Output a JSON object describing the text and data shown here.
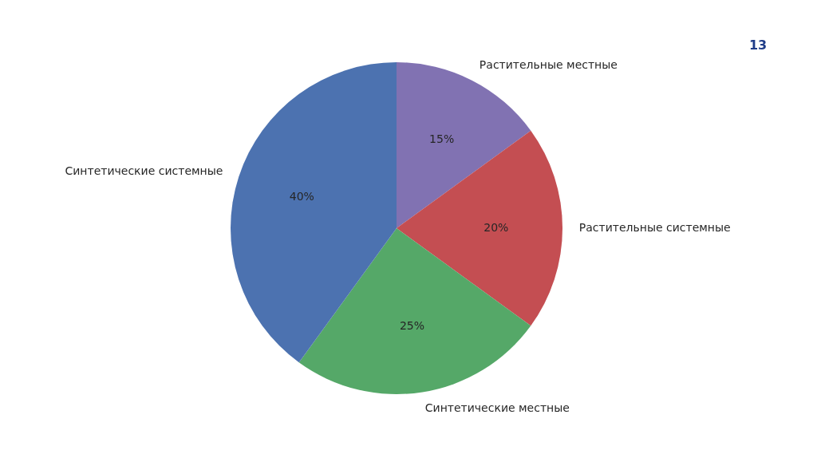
{
  "chart_data": {
    "type": "pie",
    "categories": [
      "Растительные местные",
      "Растительные системные",
      "Синтетические местные",
      "Синтетические системные"
    ],
    "values": [
      15,
      20,
      25,
      40
    ],
    "colors": [
      "#8172b2",
      "#c44e52",
      "#55a868",
      "#4c72b0"
    ],
    "value_labels": [
      "15%",
      "20%",
      "25%",
      "40%"
    ],
    "annotations": [
      "13"
    ]
  }
}
